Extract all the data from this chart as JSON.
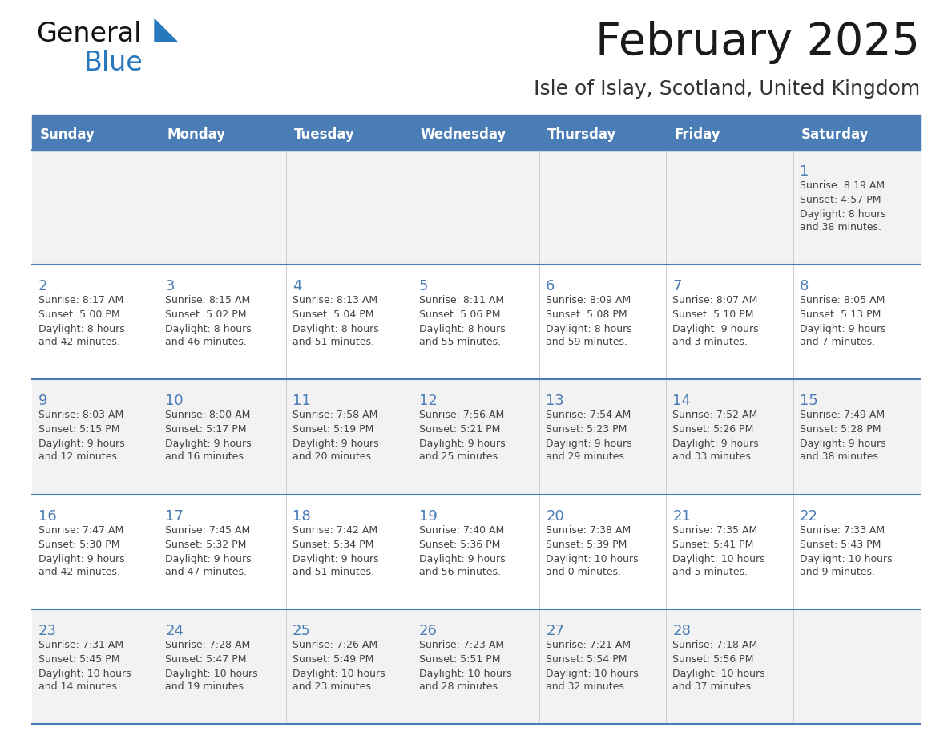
{
  "title": "February 2025",
  "subtitle": "Isle of Islay, Scotland, United Kingdom",
  "days_of_week": [
    "Sunday",
    "Monday",
    "Tuesday",
    "Wednesday",
    "Thursday",
    "Friday",
    "Saturday"
  ],
  "header_bg": "#4a7cb5",
  "header_text_color": "#ffffff",
  "row_bg_odd": "#f2f2f2",
  "row_bg_even": "#ffffff",
  "cell_border_color": "#4a7cb5",
  "day_number_color": "#4a7cb5",
  "cell_text_color": "#444444",
  "title_color": "#1a1a1a",
  "subtitle_color": "#333333",
  "logo_general_color": "#111111",
  "logo_blue_color": "#2878be",
  "weeks": [
    [
      {
        "day": null,
        "sunrise": null,
        "sunset": null,
        "daylight": null
      },
      {
        "day": null,
        "sunrise": null,
        "sunset": null,
        "daylight": null
      },
      {
        "day": null,
        "sunrise": null,
        "sunset": null,
        "daylight": null
      },
      {
        "day": null,
        "sunrise": null,
        "sunset": null,
        "daylight": null
      },
      {
        "day": null,
        "sunrise": null,
        "sunset": null,
        "daylight": null
      },
      {
        "day": null,
        "sunrise": null,
        "sunset": null,
        "daylight": null
      },
      {
        "day": 1,
        "sunrise": "8:19 AM",
        "sunset": "4:57 PM",
        "daylight": "8 hours\nand 38 minutes."
      }
    ],
    [
      {
        "day": 2,
        "sunrise": "8:17 AM",
        "sunset": "5:00 PM",
        "daylight": "8 hours\nand 42 minutes."
      },
      {
        "day": 3,
        "sunrise": "8:15 AM",
        "sunset": "5:02 PM",
        "daylight": "8 hours\nand 46 minutes."
      },
      {
        "day": 4,
        "sunrise": "8:13 AM",
        "sunset": "5:04 PM",
        "daylight": "8 hours\nand 51 minutes."
      },
      {
        "day": 5,
        "sunrise": "8:11 AM",
        "sunset": "5:06 PM",
        "daylight": "8 hours\nand 55 minutes."
      },
      {
        "day": 6,
        "sunrise": "8:09 AM",
        "sunset": "5:08 PM",
        "daylight": "8 hours\nand 59 minutes."
      },
      {
        "day": 7,
        "sunrise": "8:07 AM",
        "sunset": "5:10 PM",
        "daylight": "9 hours\nand 3 minutes."
      },
      {
        "day": 8,
        "sunrise": "8:05 AM",
        "sunset": "5:13 PM",
        "daylight": "9 hours\nand 7 minutes."
      }
    ],
    [
      {
        "day": 9,
        "sunrise": "8:03 AM",
        "sunset": "5:15 PM",
        "daylight": "9 hours\nand 12 minutes."
      },
      {
        "day": 10,
        "sunrise": "8:00 AM",
        "sunset": "5:17 PM",
        "daylight": "9 hours\nand 16 minutes."
      },
      {
        "day": 11,
        "sunrise": "7:58 AM",
        "sunset": "5:19 PM",
        "daylight": "9 hours\nand 20 minutes."
      },
      {
        "day": 12,
        "sunrise": "7:56 AM",
        "sunset": "5:21 PM",
        "daylight": "9 hours\nand 25 minutes."
      },
      {
        "day": 13,
        "sunrise": "7:54 AM",
        "sunset": "5:23 PM",
        "daylight": "9 hours\nand 29 minutes."
      },
      {
        "day": 14,
        "sunrise": "7:52 AM",
        "sunset": "5:26 PM",
        "daylight": "9 hours\nand 33 minutes."
      },
      {
        "day": 15,
        "sunrise": "7:49 AM",
        "sunset": "5:28 PM",
        "daylight": "9 hours\nand 38 minutes."
      }
    ],
    [
      {
        "day": 16,
        "sunrise": "7:47 AM",
        "sunset": "5:30 PM",
        "daylight": "9 hours\nand 42 minutes."
      },
      {
        "day": 17,
        "sunrise": "7:45 AM",
        "sunset": "5:32 PM",
        "daylight": "9 hours\nand 47 minutes."
      },
      {
        "day": 18,
        "sunrise": "7:42 AM",
        "sunset": "5:34 PM",
        "daylight": "9 hours\nand 51 minutes."
      },
      {
        "day": 19,
        "sunrise": "7:40 AM",
        "sunset": "5:36 PM",
        "daylight": "9 hours\nand 56 minutes."
      },
      {
        "day": 20,
        "sunrise": "7:38 AM",
        "sunset": "5:39 PM",
        "daylight": "10 hours\nand 0 minutes."
      },
      {
        "day": 21,
        "sunrise": "7:35 AM",
        "sunset": "5:41 PM",
        "daylight": "10 hours\nand 5 minutes."
      },
      {
        "day": 22,
        "sunrise": "7:33 AM",
        "sunset": "5:43 PM",
        "daylight": "10 hours\nand 9 minutes."
      }
    ],
    [
      {
        "day": 23,
        "sunrise": "7:31 AM",
        "sunset": "5:45 PM",
        "daylight": "10 hours\nand 14 minutes."
      },
      {
        "day": 24,
        "sunrise": "7:28 AM",
        "sunset": "5:47 PM",
        "daylight": "10 hours\nand 19 minutes."
      },
      {
        "day": 25,
        "sunrise": "7:26 AM",
        "sunset": "5:49 PM",
        "daylight": "10 hours\nand 23 minutes."
      },
      {
        "day": 26,
        "sunrise": "7:23 AM",
        "sunset": "5:51 PM",
        "daylight": "10 hours\nand 28 minutes."
      },
      {
        "day": 27,
        "sunrise": "7:21 AM",
        "sunset": "5:54 PM",
        "daylight": "10 hours\nand 32 minutes."
      },
      {
        "day": 28,
        "sunrise": "7:18 AM",
        "sunset": "5:56 PM",
        "daylight": "10 hours\nand 37 minutes."
      },
      {
        "day": null,
        "sunrise": null,
        "sunset": null,
        "daylight": null
      }
    ]
  ]
}
